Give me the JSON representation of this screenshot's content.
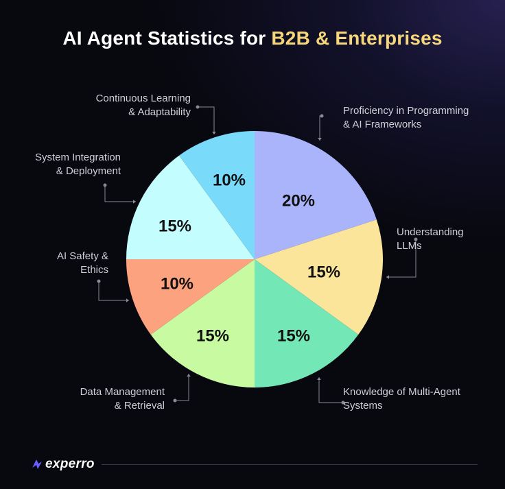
{
  "title": {
    "prefix": "AI Agent Statistics for",
    "highlight": "B2B & Enterprises"
  },
  "chart_data": {
    "type": "pie",
    "unit": "%",
    "slices": [
      {
        "label": [
          "Proficiency in Programming",
          "& AI Frameworks"
        ],
        "value": 20,
        "display": "20%",
        "color": "#a9b4fb"
      },
      {
        "label": [
          "Understanding",
          "LLMs"
        ],
        "value": 15,
        "display": "15%",
        "color": "#fbe59b"
      },
      {
        "label": [
          "Knowledge of Multi-Agent",
          "Systems"
        ],
        "value": 15,
        "display": "15%",
        "color": "#74e7b6"
      },
      {
        "label": [
          "Data Management",
          "& Retrieval"
        ],
        "value": 15,
        "display": "15%",
        "color": "#c7faa1"
      },
      {
        "label": [
          "AI Safety &",
          "Ethics"
        ],
        "value": 10,
        "display": "10%",
        "color": "#fda27e"
      },
      {
        "label": [
          "System Integration",
          "& Deployment"
        ],
        "value": 15,
        "display": "15%",
        "color": "#c3fdfd"
      },
      {
        "label": [
          "Continuous Learning",
          "& Adaptability"
        ],
        "value": 10,
        "display": "10%",
        "color": "#79daf9"
      }
    ]
  },
  "footer": {
    "brand": "experro",
    "accent": "#6a5cff"
  }
}
